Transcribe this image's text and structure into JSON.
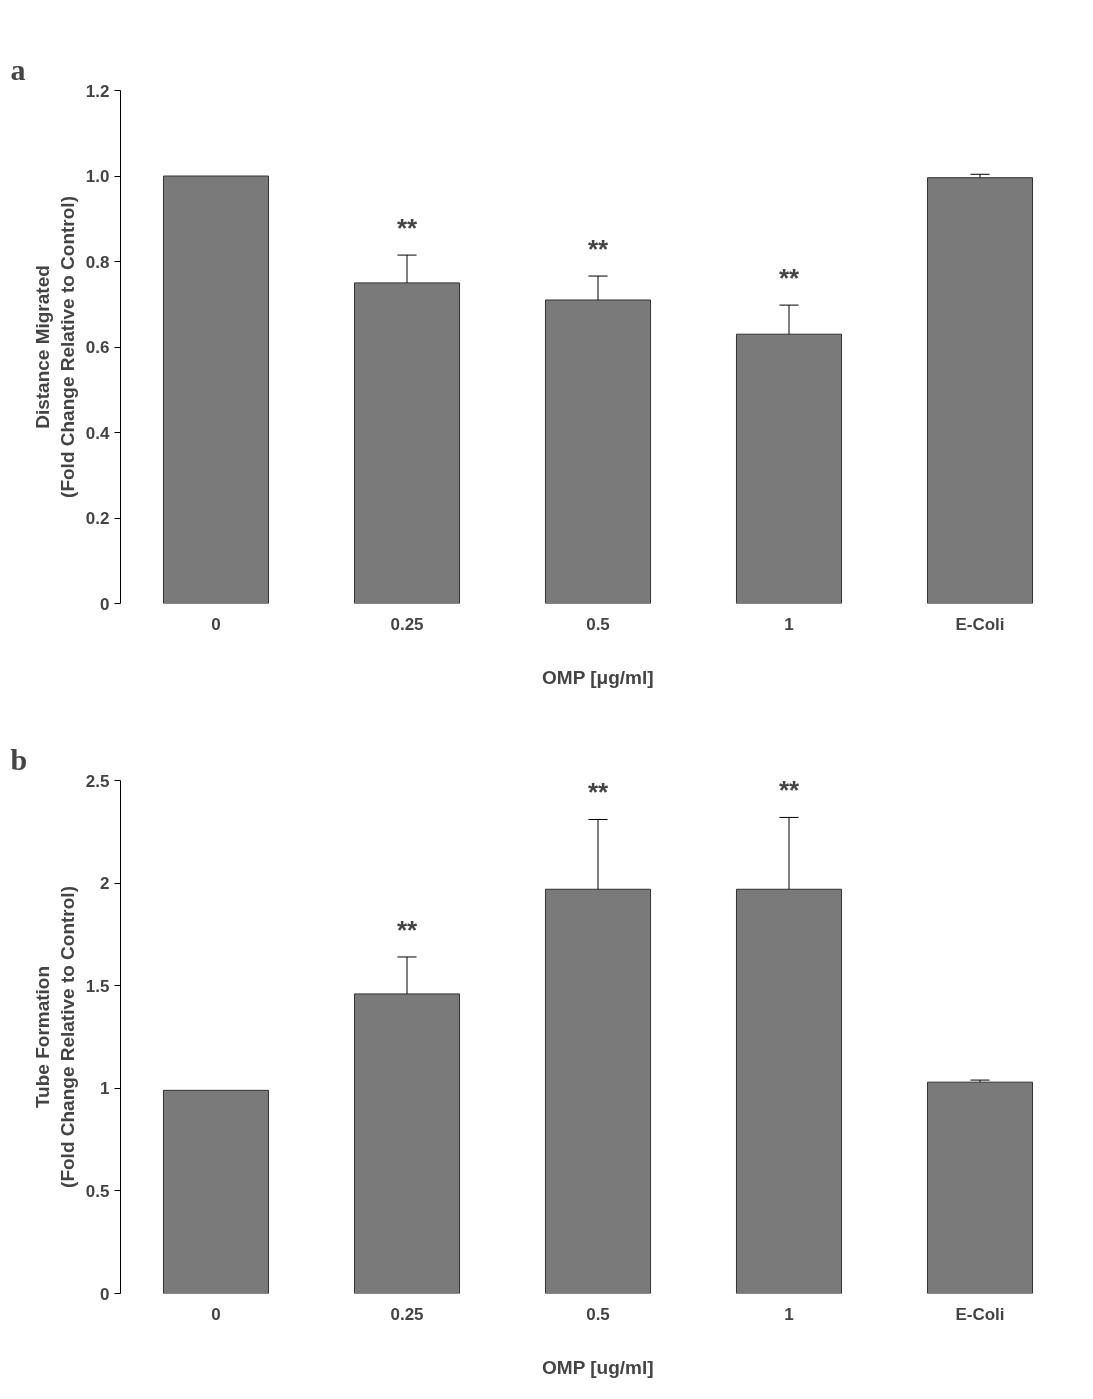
{
  "chart_data": [
    {
      "type": "bar",
      "title": "a",
      "xlabel": "OMP [μg/ml]",
      "ylabel": "Distance Migrated\n(Fold Change Relative to Control)",
      "categories": [
        "0",
        "0.25",
        "0.5",
        "1",
        "E-Coli"
      ],
      "values": [
        1.0,
        0.75,
        0.71,
        0.63,
        0.996
      ],
      "errors": [
        null,
        [
          0.75,
          0.815
        ],
        [
          0.71,
          0.766
        ],
        [
          0.63,
          0.698
        ],
        [
          0.996,
          1.004
        ]
      ],
      "color": "#7a7a7a",
      "ylim": [
        0,
        1.2
      ],
      "yticks": [
        {
          "value": 0,
          "label": "0"
        },
        0.2,
        0.4,
        0.6,
        0.8,
        {
          "value": 1,
          "label": "1.0"
        },
        1.2
      ],
      "grid": false,
      "annotations": [
        {
          "text": "**",
          "x": "0.25",
          "y": 0.815
        },
        {
          "text": "**",
          "x": "0.5",
          "y": 0.766
        },
        {
          "text": "**",
          "x": "1",
          "y": 0.698
        }
      ]
    },
    {
      "type": "bar",
      "title": "b",
      "xlabel": "OMP [ug/ml]",
      "ylabel": "Tube Formation\n(Fold Change Relative to Control)",
      "categories": [
        "0",
        "0.25",
        "0.5",
        "1",
        "E-Coli"
      ],
      "values": [
        0.99,
        1.46,
        1.97,
        1.97,
        1.03
      ],
      "errors": [
        null,
        [
          1.46,
          1.64
        ],
        [
          1.97,
          2.31
        ],
        [
          1.97,
          2.32
        ],
        [
          1.03,
          1.04
        ]
      ],
      "color": "#7a7a7a",
      "ylim": [
        0,
        2.5
      ],
      "yticks": [
        0,
        0.5,
        1,
        1.5,
        2,
        2.5
      ],
      "grid": false,
      "annotations": [
        {
          "text": "**",
          "x": "0.25",
          "y": 1.64
        },
        {
          "text": "**",
          "x": "0.5",
          "y": 2.31
        },
        {
          "text": "**",
          "x": "1",
          "y": 2.32
        }
      ]
    }
  ]
}
